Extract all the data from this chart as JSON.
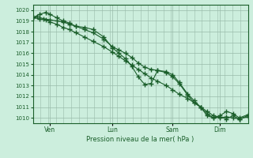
{
  "title": "Pression niveau de la mer( hPa )",
  "background_color": "#cceedd",
  "grid_color": "#99bbaa",
  "line_color": "#1a5e2a",
  "marker_color": "#1a5e2a",
  "ylim": [
    1009.5,
    1020.5
  ],
  "yticks": [
    1010,
    1011,
    1012,
    1013,
    1014,
    1015,
    1016,
    1017,
    1018,
    1019,
    1020
  ],
  "xtick_labels": [
    "Ven",
    "Lun",
    "Sam",
    "Dim"
  ],
  "xtick_positions": [
    0.08,
    0.37,
    0.65,
    0.87
  ],
  "series1_x": [
    0.0,
    0.02,
    0.05,
    0.08,
    0.11,
    0.14,
    0.17,
    0.2,
    0.24,
    0.28,
    0.33,
    0.37,
    0.4,
    0.43,
    0.46,
    0.49,
    0.52,
    0.55,
    0.58,
    0.62,
    0.65,
    0.68,
    0.72,
    0.75,
    0.78,
    0.81,
    0.84,
    0.87,
    0.9,
    0.93,
    0.96,
    1.0
  ],
  "series1_y": [
    1019.3,
    1019.4,
    1019.2,
    1019.1,
    1019.0,
    1018.9,
    1018.7,
    1018.5,
    1018.4,
    1018.2,
    1017.5,
    1016.5,
    1016.0,
    1015.5,
    1014.8,
    1013.8,
    1013.1,
    1013.2,
    1014.4,
    1014.2,
    1013.8,
    1013.2,
    1012.1,
    1011.4,
    1011.0,
    1010.2,
    1010.0,
    1010.2,
    1010.6,
    1010.4,
    1010.0,
    1010.3
  ],
  "series2_x": [
    0.0,
    0.03,
    0.06,
    0.08,
    0.11,
    0.14,
    0.17,
    0.2,
    0.24,
    0.28,
    0.33,
    0.37,
    0.4,
    0.43,
    0.46,
    0.49,
    0.52,
    0.55,
    0.58,
    0.62,
    0.65,
    0.68,
    0.72,
    0.75,
    0.78,
    0.81,
    0.84,
    0.87,
    0.9,
    0.93,
    0.96,
    1.0
  ],
  "series2_y": [
    1019.3,
    1019.6,
    1019.8,
    1019.6,
    1019.3,
    1019.0,
    1018.8,
    1018.5,
    1018.2,
    1017.9,
    1017.3,
    1016.6,
    1016.3,
    1016.0,
    1015.6,
    1015.1,
    1014.7,
    1014.5,
    1014.4,
    1014.3,
    1014.0,
    1013.3,
    1012.2,
    1011.6,
    1011.0,
    1010.4,
    1010.0,
    1010.1,
    1009.9,
    1010.2,
    1009.9,
    1010.2
  ],
  "series3_x": [
    0.0,
    0.03,
    0.06,
    0.08,
    0.11,
    0.14,
    0.17,
    0.2,
    0.24,
    0.28,
    0.33,
    0.37,
    0.4,
    0.43,
    0.46,
    0.49,
    0.52,
    0.55,
    0.58,
    0.62,
    0.65,
    0.68,
    0.72,
    0.75,
    0.78,
    0.81,
    0.84,
    0.87,
    0.9,
    0.93,
    0.96,
    1.0
  ],
  "series3_y": [
    1019.3,
    1019.2,
    1019.1,
    1018.9,
    1018.7,
    1018.4,
    1018.2,
    1017.9,
    1017.5,
    1017.1,
    1016.6,
    1016.1,
    1015.7,
    1015.3,
    1014.9,
    1014.5,
    1014.1,
    1013.7,
    1013.4,
    1013.0,
    1012.6,
    1012.2,
    1011.8,
    1011.4,
    1011.0,
    1010.6,
    1010.2,
    1010.0,
    1010.1,
    1010.0,
    1009.9,
    1010.1
  ]
}
